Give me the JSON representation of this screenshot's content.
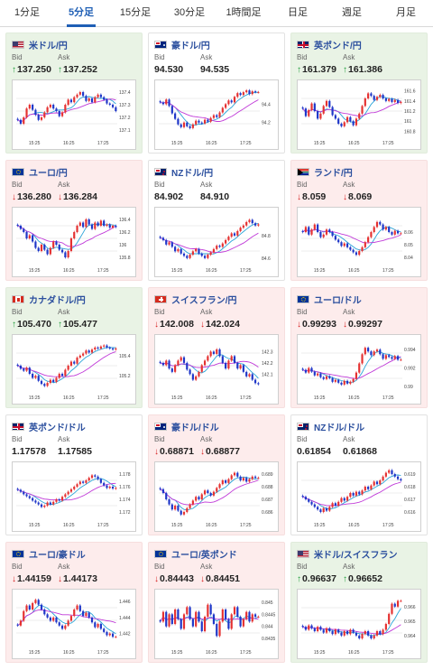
{
  "tabs": [
    {
      "label": "1分足",
      "active": false
    },
    {
      "label": "5分足",
      "active": true
    },
    {
      "label": "15分足",
      "active": false
    },
    {
      "label": "30分足",
      "active": false
    },
    {
      "label": "1時間足",
      "active": false
    },
    {
      "label": "日足",
      "active": false
    },
    {
      "label": "週足",
      "active": false
    },
    {
      "label": "月足",
      "active": false
    }
  ],
  "labels": {
    "bid": "Bid",
    "ask": "Ask"
  },
  "colors": {
    "up": "#1f9d3a",
    "down": "#d82020",
    "candle_up": "#e53131",
    "candle_down": "#1e36c8",
    "ma_short": "#2aa5d8",
    "ma_long": "#c03ad8"
  },
  "pairs": [
    {
      "name": "米ドル/円",
      "dir": "up",
      "flags": [
        "us",
        "jp"
      ],
      "bid": "137.250",
      "ask": "137.252",
      "chart_data": {
        "type": "candlestick",
        "x_ticks": [
          "15:25",
          "16:25",
          "17:25"
        ],
        "y_ticks": [
          "137.4",
          "137.3",
          "137.2",
          "137.1"
        ],
        "ylim": [
          137.05,
          137.45
        ],
        "close": [
          137.18,
          137.15,
          137.2,
          137.27,
          137.3,
          137.26,
          137.22,
          137.18,
          137.2,
          137.24,
          137.28,
          137.3,
          137.27,
          137.25,
          137.21,
          137.24,
          137.3,
          137.34,
          137.32,
          137.36,
          137.38,
          137.4,
          137.37,
          137.33,
          137.35,
          137.32,
          137.36,
          137.38,
          137.36,
          137.34,
          137.31,
          137.3,
          137.28,
          137.25
        ]
      }
    },
    {
      "name": "豪ドル/円",
      "dir": "none",
      "flags": [
        "au",
        "jp"
      ],
      "bid": "94.530",
      "ask": "94.535",
      "chart_data": {
        "type": "candlestick",
        "x_ticks": [
          "15:25",
          "16:25",
          "17:25"
        ],
        "y_ticks": [
          "94.4",
          "94.2"
        ],
        "ylim": [
          94.05,
          94.6
        ],
        "close": [
          94.42,
          94.4,
          94.45,
          94.38,
          94.3,
          94.24,
          94.18,
          94.15,
          94.2,
          94.16,
          94.14,
          94.18,
          94.22,
          94.2,
          94.19,
          94.23,
          94.21,
          94.25,
          94.28,
          94.26,
          94.31,
          94.36,
          94.4,
          94.44,
          94.42,
          94.48,
          94.52,
          94.5,
          94.53,
          94.55,
          94.51,
          94.54,
          94.53,
          94.53
        ]
      }
    },
    {
      "name": "英ポンド/円",
      "dir": "up",
      "flags": [
        "uk",
        "jp"
      ],
      "bid": "161.379",
      "ask": "161.386",
      "chart_data": {
        "type": "candlestick",
        "x_ticks": [
          "15:25",
          "16:25",
          "17:25"
        ],
        "y_ticks": [
          "161.6",
          "161.4",
          "161.2",
          "161",
          "160.8"
        ],
        "ylim": [
          160.7,
          161.7
        ],
        "close": [
          161.25,
          161.1,
          161.22,
          161.35,
          161.2,
          161.05,
          161.15,
          161.3,
          161.4,
          161.28,
          161.12,
          161.05,
          160.95,
          160.9,
          160.98,
          161.08,
          161.0,
          160.92,
          161.05,
          161.15,
          161.3,
          161.45,
          161.55,
          161.5,
          161.42,
          161.48,
          161.52,
          161.45,
          161.4,
          161.44,
          161.38,
          161.42,
          161.36,
          161.38
        ]
      }
    },
    {
      "name": "ユーロ/円",
      "dir": "down",
      "flags": [
        "eu",
        "jp"
      ],
      "bid": "136.280",
      "ask": "136.284",
      "chart_data": {
        "type": "candlestick",
        "x_ticks": [
          "15:25",
          "16:25",
          "17:25"
        ],
        "y_ticks": [
          "136.4",
          "136.2",
          "136",
          "135.8"
        ],
        "ylim": [
          135.7,
          136.5
        ],
        "close": [
          136.3,
          136.25,
          136.2,
          136.1,
          136.15,
          136.05,
          135.95,
          135.9,
          136.0,
          135.92,
          135.85,
          135.95,
          136.05,
          136.0,
          135.92,
          135.88,
          135.8,
          135.9,
          136.1,
          136.2,
          136.3,
          136.35,
          136.28,
          136.4,
          136.32,
          136.25,
          136.35,
          136.3,
          136.38,
          136.3,
          136.32,
          136.27,
          136.3,
          136.28
        ]
      }
    },
    {
      "name": "NZドル/円",
      "dir": "none",
      "flags": [
        "nz",
        "jp"
      ],
      "bid": "84.902",
      "ask": "84.910",
      "chart_data": {
        "type": "candlestick",
        "x_ticks": [
          "15:25",
          "16:25",
          "17:25"
        ],
        "y_ticks": [
          "84.8",
          "84.6"
        ],
        "ylim": [
          84.55,
          85.0
        ],
        "close": [
          84.78,
          84.76,
          84.72,
          84.74,
          84.7,
          84.66,
          84.68,
          84.64,
          84.62,
          84.6,
          84.63,
          84.66,
          84.68,
          84.64,
          84.62,
          84.6,
          84.63,
          84.65,
          84.68,
          84.71,
          84.7,
          84.73,
          84.76,
          84.79,
          84.82,
          84.8,
          84.84,
          84.87,
          84.89,
          84.92,
          84.94,
          84.91,
          84.89,
          84.9
        ]
      }
    },
    {
      "name": "ランド/円",
      "dir": "down",
      "flags": [
        "za",
        "jp"
      ],
      "bid": "8.059",
      "ask": "8.069",
      "chart_data": {
        "type": "candlestick",
        "x_ticks": [
          "15:25",
          "16:25",
          "17:25"
        ],
        "y_ticks": [
          "8.05",
          "8.06",
          "8.04"
        ],
        "ylim": [
          8.035,
          8.075
        ],
        "close": [
          8.06,
          8.064,
          8.058,
          8.062,
          8.066,
          8.06,
          8.056,
          8.058,
          8.062,
          8.06,
          8.057,
          8.054,
          8.052,
          8.049,
          8.051,
          8.048,
          8.046,
          8.044,
          8.042,
          8.045,
          8.048,
          8.052,
          8.056,
          8.06,
          8.064,
          8.068,
          8.066,
          8.062,
          8.064,
          8.06,
          8.058,
          8.061,
          8.059,
          8.059
        ]
      }
    },
    {
      "name": "カナダドル/円",
      "dir": "up",
      "flags": [
        "ca",
        "jp"
      ],
      "bid": "105.470",
      "ask": "105.477",
      "chart_data": {
        "type": "candlestick",
        "x_ticks": [
          "15:25",
          "16:25",
          "17:25"
        ],
        "y_ticks": [
          "105.4",
          "105.2"
        ],
        "ylim": [
          105.05,
          105.55
        ],
        "close": [
          105.3,
          105.27,
          105.25,
          105.28,
          105.22,
          105.18,
          105.2,
          105.15,
          105.12,
          105.1,
          105.13,
          105.16,
          105.14,
          105.18,
          105.22,
          105.2,
          105.26,
          105.3,
          105.34,
          105.32,
          105.38,
          105.4,
          105.42,
          105.45,
          105.43,
          105.46,
          105.48,
          105.47,
          105.49,
          105.5,
          105.48,
          105.47,
          105.46,
          105.47
        ]
      }
    },
    {
      "name": "スイスフラン/円",
      "dir": "down",
      "flags": [
        "ch",
        "jp"
      ],
      "bid": "142.008",
      "ask": "142.024",
      "chart_data": {
        "type": "candlestick",
        "x_ticks": [
          "15:25",
          "16:25",
          "17:25"
        ],
        "y_ticks": [
          "142.3",
          "142.2",
          "142.1"
        ],
        "ylim": [
          141.95,
          142.4
        ],
        "close": [
          142.2,
          142.18,
          142.22,
          142.15,
          142.12,
          142.18,
          142.22,
          142.25,
          142.2,
          142.14,
          142.1,
          142.05,
          142.08,
          142.12,
          142.18,
          142.22,
          142.26,
          142.3,
          142.28,
          142.32,
          142.26,
          142.2,
          142.15,
          142.22,
          142.26,
          142.2,
          142.15,
          142.18,
          142.12,
          142.08,
          142.1,
          142.05,
          142.02,
          142.01
        ]
      }
    },
    {
      "name": "ユーロ/ドル",
      "dir": "down",
      "flags": [
        "eu",
        "us"
      ],
      "bid": "0.99293",
      "ask": "0.99297",
      "chart_data": {
        "type": "candlestick",
        "x_ticks": [
          "15:25",
          "16:25",
          "17:25"
        ],
        "y_ticks": [
          "0.994",
          "0.992",
          "0.99"
        ],
        "ylim": [
          0.9895,
          0.995
        ],
        "close": [
          0.9918,
          0.9915,
          0.992,
          0.9916,
          0.9912,
          0.9914,
          0.991,
          0.9908,
          0.9911,
          0.9909,
          0.9905,
          0.9907,
          0.9904,
          0.9902,
          0.9906,
          0.9903,
          0.9905,
          0.9908,
          0.9915,
          0.9925,
          0.9935,
          0.9942,
          0.9938,
          0.9934,
          0.9938,
          0.994,
          0.9935,
          0.993,
          0.9934,
          0.9932,
          0.993,
          0.9933,
          0.9929,
          0.9929
        ]
      }
    },
    {
      "name": "英ポンド/ドル",
      "dir": "none",
      "flags": [
        "uk",
        "us"
      ],
      "bid": "1.17578",
      "ask": "1.17585",
      "chart_data": {
        "type": "candlestick",
        "x_ticks": [
          "15:25",
          "16:25",
          "17:25"
        ],
        "y_ticks": [
          "1.178",
          "1.176",
          "1.174",
          "1.172"
        ],
        "ylim": [
          1.171,
          1.179
        ],
        "close": [
          1.1755,
          1.1752,
          1.1748,
          1.1745,
          1.1742,
          1.1738,
          1.1735,
          1.1732,
          1.1728,
          1.173,
          1.1735,
          1.1732,
          1.1736,
          1.174,
          1.1738,
          1.1744,
          1.1748,
          1.1752,
          1.1756,
          1.176,
          1.1764,
          1.1768,
          1.1766,
          1.177,
          1.1774,
          1.1778,
          1.1776,
          1.1772,
          1.1766,
          1.1762,
          1.1758,
          1.176,
          1.1757,
          1.1758
        ]
      }
    },
    {
      "name": "豪ドル/ドル",
      "dir": "down",
      "flags": [
        "au",
        "us"
      ],
      "bid": "0.68871",
      "ask": "0.68877",
      "chart_data": {
        "type": "candlestick",
        "x_ticks": [
          "15:25",
          "16:25",
          "17:25"
        ],
        "y_ticks": [
          "0.689",
          "0.688",
          "0.687",
          "0.686"
        ],
        "ylim": [
          0.6855,
          0.6895
        ],
        "close": [
          0.6878,
          0.6875,
          0.687,
          0.6866,
          0.6862,
          0.6865,
          0.6861,
          0.6858,
          0.686,
          0.6863,
          0.6866,
          0.6869,
          0.6872,
          0.687,
          0.6874,
          0.6877,
          0.6875,
          0.6873,
          0.6876,
          0.6879,
          0.6882,
          0.6885,
          0.6883,
          0.6886,
          0.6889,
          0.6891,
          0.6888,
          0.6885,
          0.6887,
          0.6884,
          0.6886,
          0.6888,
          0.6887,
          0.6887
        ]
      }
    },
    {
      "name": "NZドル/ドル",
      "dir": "none",
      "flags": [
        "nz",
        "us"
      ],
      "bid": "0.61854",
      "ask": "0.61868",
      "chart_data": {
        "type": "candlestick",
        "x_ticks": [
          "15:25",
          "16:25",
          "17:25"
        ],
        "y_ticks": [
          "0.619",
          "0.618",
          "0.617",
          "0.616"
        ],
        "ylim": [
          0.6155,
          0.6195
        ],
        "close": [
          0.6172,
          0.617,
          0.6168,
          0.6166,
          0.6164,
          0.6162,
          0.616,
          0.6163,
          0.6161,
          0.6164,
          0.6167,
          0.6165,
          0.6168,
          0.6171,
          0.6169,
          0.6172,
          0.6175,
          0.6173,
          0.6176,
          0.6174,
          0.6177,
          0.618,
          0.6178,
          0.6181,
          0.6184,
          0.6182,
          0.6185,
          0.6188,
          0.6191,
          0.6193,
          0.619,
          0.6188,
          0.6186,
          0.6185
        ]
      }
    },
    {
      "name": "ユーロ/豪ドル",
      "dir": "down",
      "flags": [
        "eu",
        "au"
      ],
      "bid": "1.44159",
      "ask": "1.44173",
      "chart_data": {
        "type": "candlestick",
        "x_ticks": [
          "15:25",
          "16:25",
          "17:25"
        ],
        "y_ticks": [
          "1.446",
          "1.444",
          "1.442"
        ],
        "ylim": [
          1.4405,
          1.4468
        ],
        "close": [
          1.443,
          1.4436,
          1.4448,
          1.4455,
          1.445,
          1.4458,
          1.4462,
          1.4456,
          1.445,
          1.4444,
          1.444,
          1.4436,
          1.444,
          1.4434,
          1.443,
          1.4426,
          1.443,
          1.4436,
          1.4442,
          1.445,
          1.4455,
          1.4448,
          1.4442,
          1.4446,
          1.444,
          1.4434,
          1.4428,
          1.4432,
          1.4426,
          1.4422,
          1.4418,
          1.442,
          1.4416,
          1.4416
        ]
      }
    },
    {
      "name": "ユーロ/英ポンド",
      "dir": "down",
      "flags": [
        "eu",
        "uk"
      ],
      "bid": "0.84443",
      "ask": "0.84451",
      "chart_data": {
        "type": "candlestick",
        "x_ticks": [
          "15:25",
          "16:25",
          "17:25"
        ],
        "y_ticks": [
          "0.845",
          "0.8445",
          "0.844",
          "0.8435"
        ],
        "ylim": [
          0.8432,
          0.8453
        ],
        "close": [
          0.8442,
          0.8446,
          0.844,
          0.8445,
          0.8441,
          0.8447,
          0.8443,
          0.8439,
          0.8445,
          0.8448,
          0.8443,
          0.844,
          0.8446,
          0.8442,
          0.8438,
          0.8444,
          0.8449,
          0.8445,
          0.8441,
          0.8436,
          0.8442,
          0.8447,
          0.8443,
          0.8439,
          0.8445,
          0.8448,
          0.8444,
          0.844,
          0.8443,
          0.8446,
          0.8442,
          0.8445,
          0.8444,
          0.8444
        ]
      }
    },
    {
      "name": "米ドル/スイスフラン",
      "dir": "up",
      "flags": [
        "us",
        "ch"
      ],
      "bid": "0.96637",
      "ask": "0.96652",
      "chart_data": {
        "type": "candlestick",
        "x_ticks": [
          "15:25",
          "16:25",
          "17:25"
        ],
        "y_ticks": [
          "0.966",
          "0.965",
          "0.964"
        ],
        "ylim": [
          0.9633,
          0.9668
        ],
        "close": [
          0.9646,
          0.9644,
          0.9647,
          0.9645,
          0.9643,
          0.9646,
          0.9644,
          0.9642,
          0.9645,
          0.9643,
          0.9641,
          0.9644,
          0.9642,
          0.964,
          0.9643,
          0.9641,
          0.9644,
          0.9642,
          0.964,
          0.9638,
          0.9641,
          0.9643,
          0.964,
          0.9638,
          0.964,
          0.9643,
          0.9641,
          0.9644,
          0.9648,
          0.9655,
          0.9662,
          0.966,
          0.9664,
          0.9664
        ]
      }
    }
  ]
}
